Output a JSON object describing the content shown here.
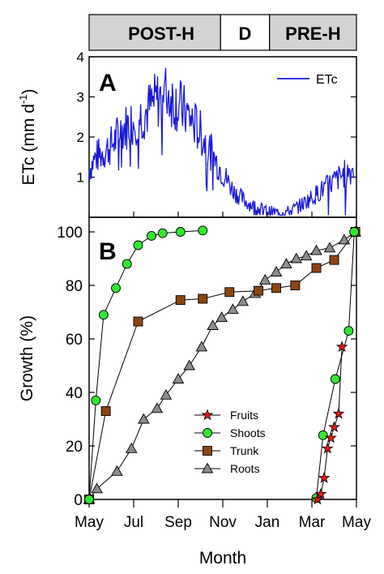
{
  "chart_data": [
    {
      "type": "line",
      "panel_label": "A",
      "ylabel": "ETc (mm d",
      "ylabel_sup": "-1",
      "ylabel_close": ")",
      "ylim": [
        0,
        4
      ],
      "yticks": [
        1,
        2,
        3,
        4
      ],
      "period_bars": [
        {
          "label": "POST-H",
          "start": 0,
          "end": 5.9
        },
        {
          "label": "D",
          "start": 5.9,
          "end": 8.1
        },
        {
          "label": "PRE-H",
          "start": 8.1,
          "end": 12.0
        }
      ],
      "series": [
        {
          "name": "ETc",
          "color": "#1a1adb",
          "profile_x": [
            0,
            0.3,
            0.6,
            1.0,
            1.5,
            2.0,
            2.5,
            3.0,
            3.5,
            4.0,
            4.5,
            5.0,
            5.5,
            6.0,
            6.5,
            7.0,
            7.5,
            8.0,
            8.5,
            9.0,
            9.5,
            10.0,
            10.5,
            11.0,
            11.5,
            11.9
          ],
          "profile_y": [
            1.2,
            1.5,
            1.6,
            1.8,
            2.2,
            2.4,
            2.6,
            2.9,
            3.1,
            2.8,
            2.5,
            2.1,
            1.6,
            1.1,
            0.65,
            0.4,
            0.25,
            0.15,
            0.12,
            0.15,
            0.3,
            0.5,
            0.7,
            0.9,
            1.1,
            1.2
          ]
        }
      ]
    },
    {
      "type": "line",
      "panel_label": "B",
      "ylabel": "Growth (%)",
      "xlabel": "Month",
      "ylim": [
        0,
        100
      ],
      "yticks": [
        0,
        20,
        40,
        60,
        80,
        100
      ],
      "xlim": [
        0,
        12
      ],
      "xticks": [
        0,
        2,
        4,
        6,
        8,
        10,
        12
      ],
      "xtick_labels": [
        "May",
        "Jul",
        "Sep",
        "Nov",
        "Jan",
        "Mar",
        "May"
      ],
      "legend_position": "lower-center",
      "series": [
        {
          "name": "Fruits",
          "marker": "star",
          "color": "#e01818",
          "x": [
            10.25,
            10.4,
            10.55,
            10.7,
            10.85,
            11.0,
            11.2,
            11.35
          ],
          "y": [
            0,
            2,
            8,
            19,
            23,
            27,
            32,
            57
          ]
        },
        {
          "name": "Shoots",
          "marker": "circle",
          "color": "#33e633",
          "x": [
            0,
            0.3,
            0.65,
            1.2,
            1.7,
            2.2,
            2.8,
            3.3,
            4.1,
            5.1
          ],
          "y": [
            0,
            37,
            69,
            79,
            88,
            95,
            98.5,
            99.5,
            100,
            100.5
          ],
          "x2": [
            10.2,
            10.5,
            11.05,
            11.65,
            11.9
          ],
          "y2": [
            0.5,
            24,
            45,
            63,
            100
          ]
        },
        {
          "name": "Trunk",
          "marker": "square",
          "color": "#8b4513",
          "x": [
            0,
            0.75,
            2.2,
            4.1,
            5.1,
            6.3,
            7.6,
            8.4,
            9.25,
            10.2,
            11.0,
            11.95
          ],
          "y": [
            0,
            33,
            66.5,
            74.5,
            75,
            77.5,
            78,
            79,
            80,
            86.5,
            89.5,
            100
          ]
        },
        {
          "name": "Roots",
          "marker": "triangle",
          "color": "#8c8c8c",
          "x": [
            0,
            0.35,
            1.25,
            1.9,
            2.45,
            3.05,
            3.45,
            4.0,
            4.5,
            5.05,
            5.55,
            5.95,
            6.45,
            6.9,
            7.45,
            7.9,
            8.4,
            8.85,
            9.3,
            9.75,
            10.2,
            10.8,
            11.45,
            11.95
          ],
          "y": [
            0,
            4,
            10.5,
            19,
            30,
            34,
            39,
            45,
            50,
            57,
            65,
            68,
            71,
            74,
            77,
            82,
            85,
            88,
            90,
            91,
            93,
            94,
            97,
            100
          ]
        }
      ]
    }
  ]
}
